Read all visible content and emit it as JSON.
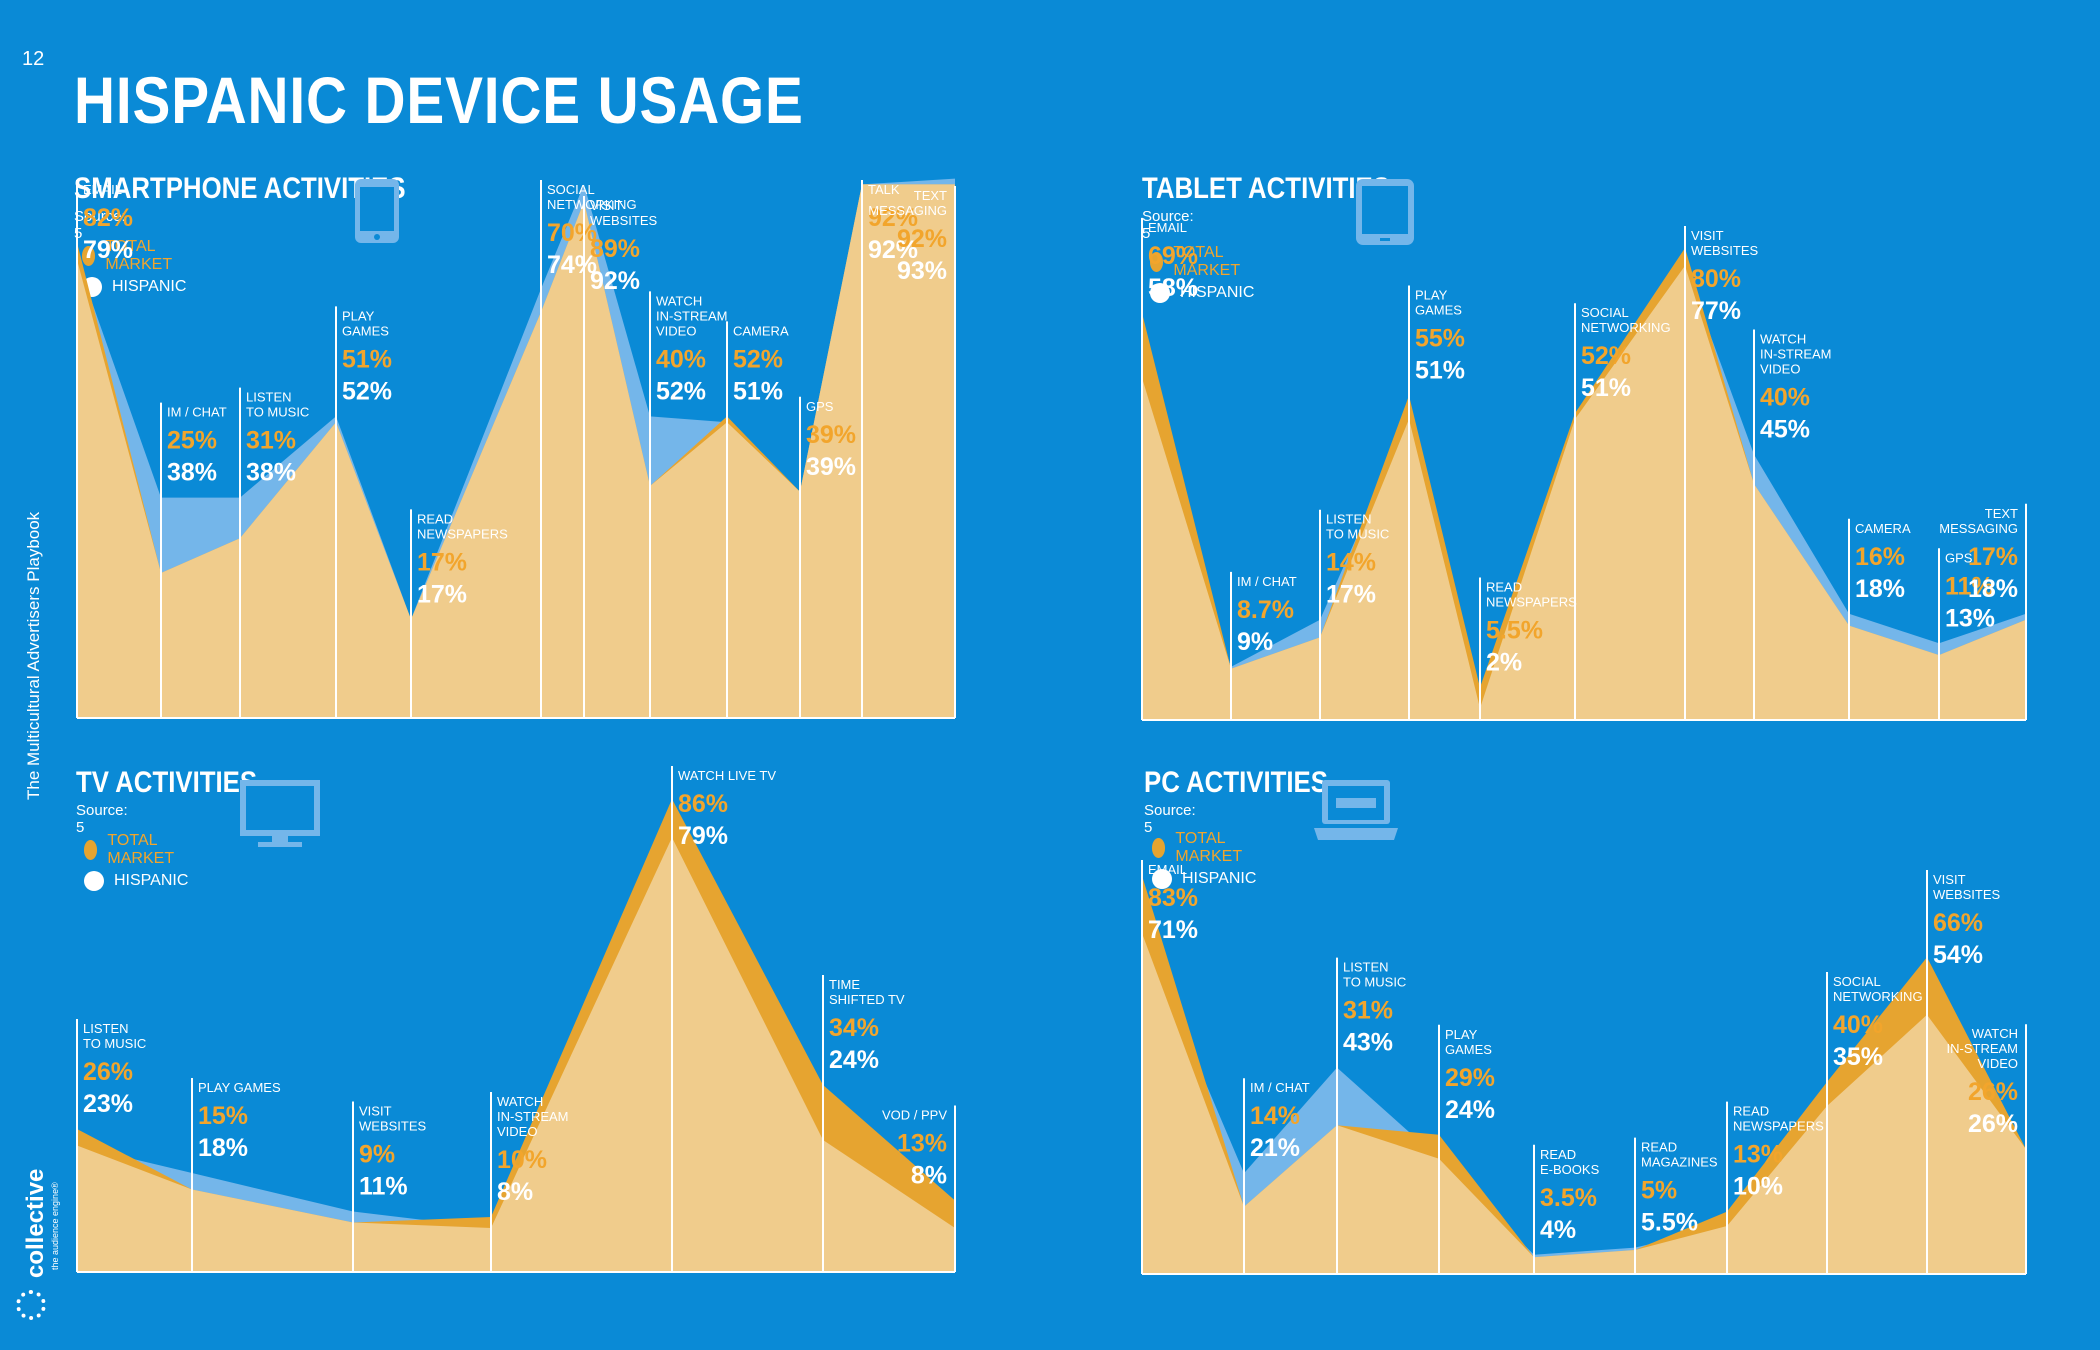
{
  "page": {
    "number": "12",
    "title": "HISPANIC DEVICE USAGE",
    "side_text": "The Multicultural Advertisers Playbook",
    "logo_word": "collective",
    "logo_tagline": "the audience engine®"
  },
  "colors": {
    "background": "#0a8ad6",
    "total_market": "#e6a430",
    "hispanic": "#f0cc8c",
    "overlap_light": "#74b6ea",
    "text_orange": "#f2a52c"
  },
  "legend": {
    "total_market": "TOTAL MARKET",
    "hispanic": "HISPANIC"
  },
  "panels": [
    {
      "id": "smartphone",
      "title": "SMARTPHONE ACTIVITIES",
      "source": "Source: 5",
      "icon": "smartphone-icon"
    },
    {
      "id": "tablet",
      "title": "TABLET ACTIVITIES",
      "source": "Source: 5",
      "icon": "tablet-icon"
    },
    {
      "id": "tv",
      "title": "TV ACTIVITIES",
      "source": "Source: 5",
      "icon": "tv-monitor-icon"
    },
    {
      "id": "pc",
      "title": "PC ACTIVITIES",
      "source": "Source: 5",
      "icon": "laptop-icon"
    }
  ],
  "chart_data": [
    {
      "type": "area",
      "title": "SMARTPHONE ACTIVITIES",
      "categories": [
        [
          "EMAIL"
        ],
        [
          "IM / CHAT"
        ],
        [
          "LISTEN",
          "TO MUSIC"
        ],
        [
          "PLAY",
          "GAMES"
        ],
        [
          "READ",
          "NEWSPAPERS"
        ],
        [
          "SOCIAL",
          "NETWORKING"
        ],
        [
          "VISIT",
          "WEBSITES"
        ],
        [
          "WATCH",
          "IN-STREAM",
          "VIDEO"
        ],
        [
          "CAMERA"
        ],
        [
          "GPS"
        ],
        [
          "TALK"
        ],
        [
          "TEXT",
          "MESSAGING"
        ]
      ],
      "series": [
        {
          "name": "TOTAL MARKET",
          "labels": [
            "82%",
            "25%",
            "31%",
            "51%",
            "17%",
            "70%",
            "89%",
            "40%",
            "52%",
            "39%",
            "92%",
            "92%"
          ],
          "values": [
            82,
            25,
            31,
            51,
            17,
            70,
            89,
            40,
            52,
            39,
            92,
            92
          ]
        },
        {
          "name": "HISPANIC",
          "labels": [
            "79%",
            "38%",
            "38%",
            "52%",
            "17%",
            "74%",
            "92%",
            "52%",
            "51%",
            "39%",
            "92%",
            "93%"
          ],
          "values": [
            79,
            38,
            38,
            52,
            17,
            74,
            92,
            52,
            51,
            39,
            92,
            93
          ]
        }
      ]
    },
    {
      "type": "area",
      "title": "TABLET ACTIVITIES",
      "categories": [
        [
          "EMAIL"
        ],
        [
          "IM / CHAT"
        ],
        [
          "LISTEN",
          "TO MUSIC"
        ],
        [
          "PLAY",
          "GAMES"
        ],
        [
          "READ",
          "NEWSPAPERS"
        ],
        [
          "SOCIAL",
          "NETWORKING"
        ],
        [
          "VISIT",
          "WEBSITES"
        ],
        [
          "WATCH",
          "IN-STREAM",
          "VIDEO"
        ],
        [
          "CAMERA"
        ],
        [
          "GPS"
        ],
        [
          "TEXT",
          "MESSAGING"
        ]
      ],
      "series": [
        {
          "name": "TOTAL MARKET",
          "labels": [
            "69%",
            "8.7%",
            "14%",
            "55%",
            "5.5%",
            "52%",
            "80%",
            "40%",
            "16%",
            "11%",
            "17%"
          ],
          "values": [
            69,
            8.7,
            14,
            55,
            5.5,
            52,
            80,
            40,
            16,
            11,
            17
          ]
        },
        {
          "name": "HISPANIC",
          "labels": [
            "58%",
            "9%",
            "17%",
            "51%",
            "2%",
            "51%",
            "77%",
            "45%",
            "18%",
            "13%",
            "18%"
          ],
          "values": [
            58,
            9,
            17,
            51,
            2,
            51,
            77,
            45,
            18,
            13,
            18
          ]
        }
      ]
    },
    {
      "type": "area",
      "title": "TV ACTIVITIES",
      "categories": [
        [
          "LISTEN",
          "TO MUSIC"
        ],
        [
          "PLAY GAMES"
        ],
        [
          "VISIT",
          "WEBSITES"
        ],
        [
          "WATCH",
          "IN-STREAM",
          "VIDEO"
        ],
        [
          "WATCH LIVE TV"
        ],
        [
          "TIME",
          "SHIFTED TV"
        ],
        [
          "VOD / PPV"
        ]
      ],
      "series": [
        {
          "name": "TOTAL MARKET",
          "labels": [
            "26%",
            "15%",
            "9%",
            "10%",
            "86%",
            "34%",
            "13%"
          ],
          "values": [
            26,
            15,
            9,
            10,
            86,
            34,
            13
          ]
        },
        {
          "name": "HISPANIC",
          "labels": [
            "23%",
            "18%",
            "11%",
            "8%",
            "79%",
            "24%",
            "8%"
          ],
          "values": [
            23,
            18,
            11,
            8,
            79,
            24,
            8
          ]
        }
      ]
    },
    {
      "type": "area",
      "title": "PC ACTIVITIES",
      "categories": [
        [
          "EMAIL"
        ],
        [
          "IM / CHAT"
        ],
        [
          "LISTEN",
          "TO MUSIC"
        ],
        [
          "PLAY",
          "GAMES"
        ],
        [
          "READ",
          "E-BOOKS"
        ],
        [
          "READ",
          "MAGAZINES"
        ],
        [
          "READ",
          "NEWSPAPERS"
        ],
        [
          "SOCIAL",
          "NETWORKING"
        ],
        [
          "VISIT",
          "WEBSITES"
        ],
        [
          "WATCH",
          "IN-STREAM",
          "VIDEO"
        ]
      ],
      "series": [
        {
          "name": "TOTAL MARKET",
          "labels": [
            "83%",
            "14%",
            "31%",
            "29%",
            "3.5%",
            "5%",
            "13%",
            "40%",
            "66%",
            "26%"
          ],
          "values": [
            83,
            14,
            31,
            29,
            3.5,
            5,
            13,
            40,
            66,
            26
          ]
        },
        {
          "name": "HISPANIC",
          "labels": [
            "71%",
            "21%",
            "43%",
            "24%",
            "4%",
            "5.5%",
            "10%",
            "35%",
            "54%",
            "26%"
          ],
          "values": [
            71,
            21,
            43,
            24,
            4,
            5.5,
            10,
            35,
            54,
            26
          ]
        }
      ]
    }
  ]
}
